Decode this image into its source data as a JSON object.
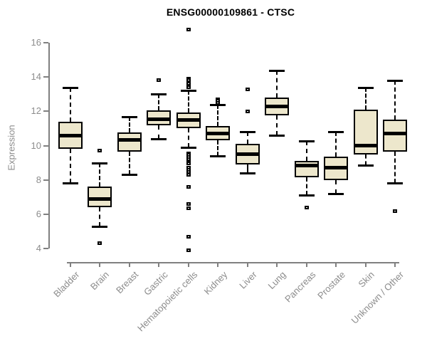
{
  "title": "ENSG00000109861 - CTSC",
  "axes": {
    "ylabel": "Expression",
    "ytick_labels": [
      "4",
      "6",
      "8",
      "10",
      "12",
      "14",
      "16"
    ]
  },
  "colors": {
    "box_fill": "#ede7cc",
    "box_border": "#000000",
    "axis": "#808080",
    "axis_text": "#8c8c8c",
    "title_text": "#000000"
  },
  "chart_data": {
    "type": "boxplot",
    "title": "ENSG00000109861 - CTSC",
    "xlabel": "",
    "ylabel": "Expression",
    "ylim": [
      4,
      16
    ],
    "yticks": [
      4,
      6,
      8,
      10,
      12,
      14,
      16
    ],
    "grid": false,
    "legend": false,
    "categories": [
      "Bladder",
      "Brain",
      "Breast",
      "Gastric",
      "Hematopoietic cells",
      "Kidney",
      "Liver",
      "Lung",
      "Pancreas",
      "Prostate",
      "Skin",
      "Unknown / Other"
    ],
    "series": [
      {
        "name": "Bladder",
        "whisker_low": 7.8,
        "q1": 9.8,
        "median": 10.6,
        "q3": 11.4,
        "whisker_high": 13.4,
        "outliers": []
      },
      {
        "name": "Brain",
        "whisker_low": 5.3,
        "q1": 6.4,
        "median": 6.9,
        "q3": 7.6,
        "whisker_high": 9.0,
        "outliers": [
          9.7,
          4.3
        ]
      },
      {
        "name": "Breast",
        "whisker_low": 8.3,
        "q1": 9.65,
        "median": 10.35,
        "q3": 10.75,
        "whisker_high": 11.7,
        "outliers": []
      },
      {
        "name": "Gastric",
        "whisker_low": 10.4,
        "q1": 11.2,
        "median": 11.55,
        "q3": 12.05,
        "whisker_high": 13.0,
        "outliers": [
          13.8
        ]
      },
      {
        "name": "Hematopoietic cells",
        "whisker_low": 9.9,
        "q1": 11.0,
        "median": 11.5,
        "q3": 11.95,
        "whisker_high": 13.2,
        "outliers": [
          16.75,
          13.9,
          13.8,
          13.7,
          13.6,
          13.5,
          13.4,
          9.55,
          9.45,
          9.35,
          9.2,
          9.05,
          8.95,
          8.7,
          8.6,
          8.45,
          8.3,
          7.6,
          6.6,
          6.35,
          4.7,
          3.9
        ]
      },
      {
        "name": "Kidney",
        "whisker_low": 9.4,
        "q1": 10.3,
        "median": 10.7,
        "q3": 11.15,
        "whisker_high": 12.4,
        "outliers": [
          12.7,
          12.6,
          12.5
        ]
      },
      {
        "name": "Liver",
        "whisker_low": 8.4,
        "q1": 8.9,
        "median": 9.5,
        "q3": 10.1,
        "whisker_high": 10.8,
        "outliers": [
          13.3,
          12.0
        ]
      },
      {
        "name": "Lung",
        "whisker_low": 10.6,
        "q1": 11.75,
        "median": 12.3,
        "q3": 12.8,
        "whisker_high": 14.4,
        "outliers": []
      },
      {
        "name": "Pancreas",
        "whisker_low": 7.1,
        "q1": 8.15,
        "median": 8.85,
        "q3": 9.1,
        "whisker_high": 10.25,
        "outliers": [
          6.4
        ]
      },
      {
        "name": "Prostate",
        "whisker_low": 7.2,
        "q1": 8.0,
        "median": 8.7,
        "q3": 9.35,
        "whisker_high": 10.8,
        "outliers": []
      },
      {
        "name": "Skin",
        "whisker_low": 8.85,
        "q1": 9.5,
        "median": 10.0,
        "q3": 12.1,
        "whisker_high": 13.4,
        "outliers": []
      },
      {
        "name": "Unknown / Other",
        "whisker_low": 7.8,
        "q1": 9.65,
        "median": 10.7,
        "q3": 11.5,
        "whisker_high": 13.8,
        "outliers": [
          6.2
        ]
      }
    ]
  }
}
